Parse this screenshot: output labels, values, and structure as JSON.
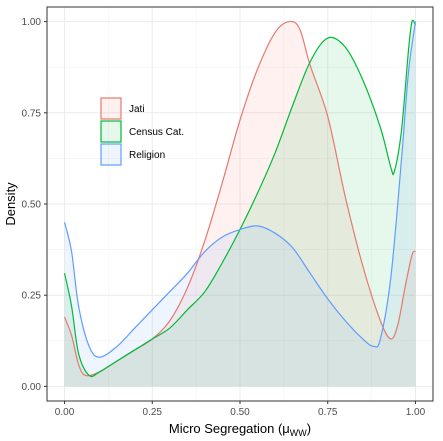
{
  "chart_data": {
    "type": "area",
    "subtype": "density",
    "title": "",
    "xlabel": "Micro Segregation (μ",
    "xlabel_sub": "WW",
    "xlabel_close": ")",
    "ylabel": "Density",
    "xlim": [
      -0.05,
      1.05
    ],
    "ylim": [
      -0.04,
      1.04
    ],
    "xticks": [
      0.0,
      0.25,
      0.5,
      0.75,
      1.0
    ],
    "xtick_labels": [
      "0.00",
      "0.25",
      "0.50",
      "0.75",
      "1.00"
    ],
    "yticks": [
      0.0,
      0.25,
      0.5,
      0.75,
      1.0
    ],
    "ytick_labels": [
      "0.00",
      "0.25",
      "0.50",
      "0.75",
      "1.00"
    ],
    "grid": true,
    "legend_position": "top-left",
    "series": [
      {
        "name": "Jati",
        "color": "#e8786e",
        "fill": "#f8766d",
        "points": [
          [
            0.0,
            0.19
          ],
          [
            0.02,
            0.14
          ],
          [
            0.04,
            0.06
          ],
          [
            0.06,
            0.03
          ],
          [
            0.1,
            0.04
          ],
          [
            0.15,
            0.07
          ],
          [
            0.2,
            0.1
          ],
          [
            0.25,
            0.13
          ],
          [
            0.3,
            0.18
          ],
          [
            0.35,
            0.27
          ],
          [
            0.4,
            0.4
          ],
          [
            0.45,
            0.56
          ],
          [
            0.5,
            0.73
          ],
          [
            0.55,
            0.87
          ],
          [
            0.6,
            0.97
          ],
          [
            0.64,
            1.0
          ],
          [
            0.67,
            0.98
          ],
          [
            0.7,
            0.88
          ],
          [
            0.75,
            0.74
          ],
          [
            0.8,
            0.52
          ],
          [
            0.85,
            0.33
          ],
          [
            0.9,
            0.18
          ],
          [
            0.93,
            0.13
          ],
          [
            0.95,
            0.17
          ],
          [
            0.97,
            0.27
          ],
          [
            0.99,
            0.36
          ],
          [
            1.0,
            0.37
          ]
        ]
      },
      {
        "name": "Census Cat.",
        "color": "#00ba38",
        "fill": "#00ba38",
        "points": [
          [
            0.0,
            0.31
          ],
          [
            0.02,
            0.22
          ],
          [
            0.04,
            0.09
          ],
          [
            0.07,
            0.03
          ],
          [
            0.1,
            0.04
          ],
          [
            0.15,
            0.07
          ],
          [
            0.2,
            0.1
          ],
          [
            0.25,
            0.13
          ],
          [
            0.3,
            0.16
          ],
          [
            0.35,
            0.21
          ],
          [
            0.4,
            0.26
          ],
          [
            0.45,
            0.34
          ],
          [
            0.5,
            0.43
          ],
          [
            0.55,
            0.53
          ],
          [
            0.6,
            0.64
          ],
          [
            0.65,
            0.77
          ],
          [
            0.7,
            0.89
          ],
          [
            0.75,
            0.955
          ],
          [
            0.8,
            0.93
          ],
          [
            0.85,
            0.84
          ],
          [
            0.9,
            0.71
          ],
          [
            0.93,
            0.6
          ],
          [
            0.94,
            0.59
          ],
          [
            0.96,
            0.7
          ],
          [
            0.98,
            0.92
          ],
          [
            0.99,
            1.0
          ],
          [
            1.0,
            0.99
          ]
        ]
      },
      {
        "name": "Religion",
        "color": "#619cff",
        "fill": "#619cff",
        "points": [
          [
            0.0,
            0.45
          ],
          [
            0.02,
            0.37
          ],
          [
            0.04,
            0.22
          ],
          [
            0.07,
            0.11
          ],
          [
            0.1,
            0.08
          ],
          [
            0.15,
            0.11
          ],
          [
            0.2,
            0.16
          ],
          [
            0.25,
            0.21
          ],
          [
            0.3,
            0.26
          ],
          [
            0.35,
            0.31
          ],
          [
            0.4,
            0.37
          ],
          [
            0.45,
            0.41
          ],
          [
            0.5,
            0.43
          ],
          [
            0.55,
            0.44
          ],
          [
            0.6,
            0.42
          ],
          [
            0.65,
            0.38
          ],
          [
            0.7,
            0.31
          ],
          [
            0.75,
            0.24
          ],
          [
            0.8,
            0.18
          ],
          [
            0.85,
            0.13
          ],
          [
            0.88,
            0.11
          ],
          [
            0.9,
            0.13
          ],
          [
            0.93,
            0.3
          ],
          [
            0.96,
            0.62
          ],
          [
            0.98,
            0.86
          ],
          [
            1.0,
            1.0
          ]
        ]
      }
    ]
  }
}
